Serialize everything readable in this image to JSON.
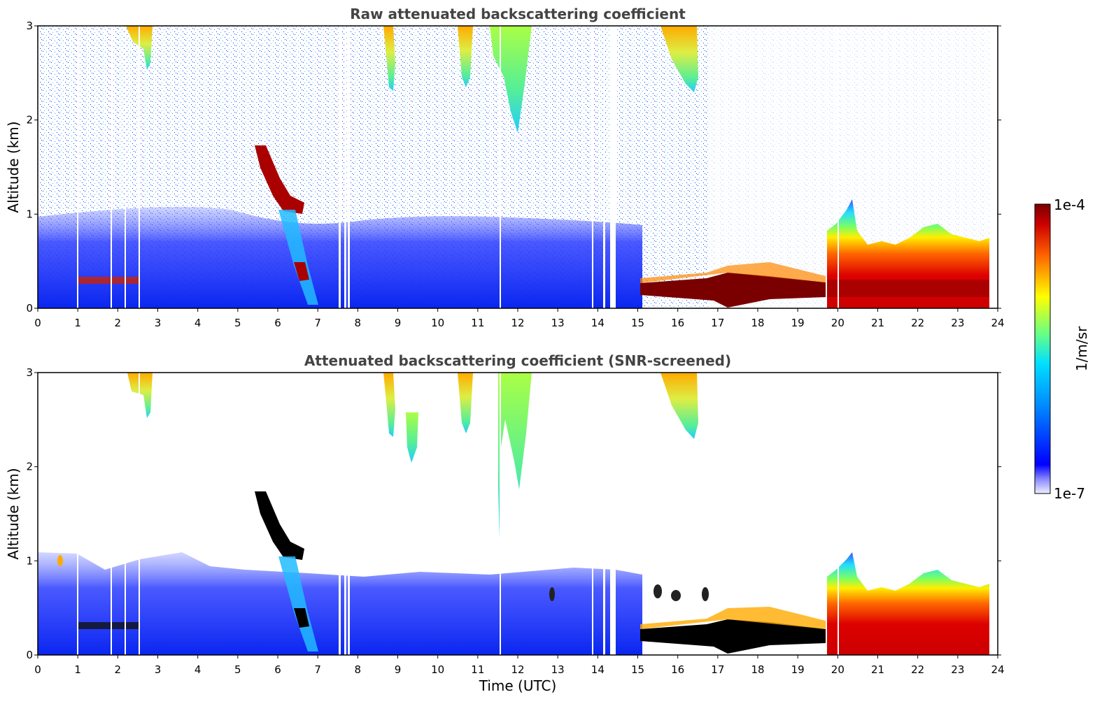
{
  "chart_data": [
    {
      "type": "heatmap",
      "title": "Raw attenuated backscattering coefficient",
      "xlabel": "",
      "ylabel": "Altitude (km)",
      "xlim": [
        0,
        24
      ],
      "ylim": [
        0,
        3
      ],
      "xticks": [
        "0",
        "1",
        "2",
        "3",
        "4",
        "5",
        "6",
        "7",
        "8",
        "9",
        "10",
        "11",
        "12",
        "13",
        "14",
        "15",
        "16",
        "17",
        "18",
        "19",
        "20",
        "21",
        "22",
        "23",
        "24"
      ],
      "yticks": [
        "0",
        "1",
        "2",
        "3"
      ],
      "features": [
        {
          "name": "boundary-layer-aerosol",
          "x": [
            0,
            15
          ],
          "y": [
            0,
            0.9
          ],
          "level": "low"
        },
        {
          "name": "thin-layer-morning",
          "x": [
            1,
            2.7
          ],
          "y": [
            0.25,
            0.35
          ],
          "level": "high"
        },
        {
          "name": "descending-cloud-layer",
          "x": [
            5.4,
            6.8
          ],
          "y": [
            0.3,
            1.7
          ],
          "level": "very-high"
        },
        {
          "name": "cirrus-virga-1",
          "x": [
            8.6,
            8.9
          ],
          "y": [
            2.3,
            3
          ],
          "level": "high"
        },
        {
          "name": "cirrus-virga-2",
          "x": [
            10.5,
            12.2
          ],
          "y": [
            1.8,
            3
          ],
          "level": "medium"
        },
        {
          "name": "cirrus-virga-3",
          "x": [
            15.6,
            16.6
          ],
          "y": [
            2.3,
            3
          ],
          "level": "high"
        },
        {
          "name": "stratocumulus-layer",
          "x": [
            15,
            19.7
          ],
          "y": [
            0.15,
            0.3
          ],
          "level": "very-high"
        },
        {
          "name": "evening-boundary-layer",
          "x": [
            19.7,
            23.8
          ],
          "y": [
            0,
            0.8
          ],
          "level": "high"
        }
      ]
    },
    {
      "type": "heatmap",
      "title": "Attenuated backscattering coefficient (SNR-screened)",
      "xlabel": "Time (UTC)",
      "ylabel": "Altitude (km)",
      "xlim": [
        0,
        24
      ],
      "ylim": [
        0,
        3
      ],
      "xticks": [
        "0",
        "1",
        "2",
        "3",
        "4",
        "5",
        "6",
        "7",
        "8",
        "9",
        "10",
        "11",
        "12",
        "13",
        "14",
        "15",
        "16",
        "17",
        "18",
        "19",
        "20",
        "21",
        "22",
        "23",
        "24"
      ],
      "yticks": [
        "0",
        "1",
        "2",
        "3"
      ],
      "features": [
        {
          "name": "boundary-layer-aerosol",
          "x": [
            0,
            15
          ],
          "y": [
            0,
            0.9
          ],
          "level": "low"
        },
        {
          "name": "descending-cloud-layer",
          "x": [
            5.4,
            6.8
          ],
          "y": [
            0.3,
            1.7
          ],
          "level": "saturated"
        },
        {
          "name": "cirrus-virga",
          "x": [
            8.6,
            12.2
          ],
          "y": [
            1.2,
            3
          ],
          "level": "medium"
        },
        {
          "name": "stratocumulus-layer",
          "x": [
            15,
            19.7
          ],
          "y": [
            0.15,
            0.3
          ],
          "level": "saturated"
        },
        {
          "name": "evening-boundary-layer",
          "x": [
            19.7,
            23.8
          ],
          "y": [
            0,
            0.8
          ],
          "level": "high"
        }
      ]
    }
  ],
  "colorbar": {
    "max_label": "1e-4",
    "min_label": "1e-7",
    "unit_label": "1/m/sr",
    "colors": [
      "#eeeeff",
      "#0000ff",
      "#00ccff",
      "#66ff66",
      "#ffff00",
      "#ff6600",
      "#cc0000",
      "#7a0000"
    ]
  },
  "colors": {
    "title": "#444444",
    "axis": "#000000",
    "cloud_saturated": "#000000"
  }
}
